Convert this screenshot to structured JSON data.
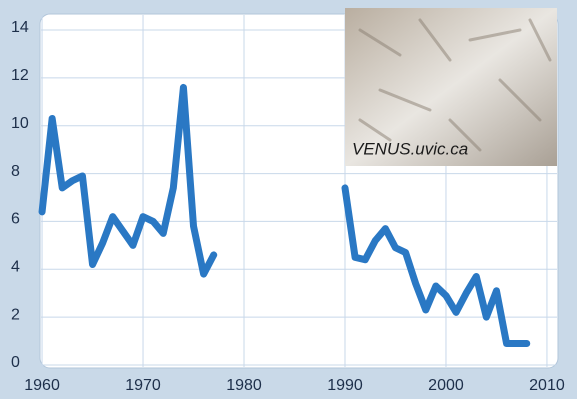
{
  "chart_data": {
    "type": "line",
    "x": [
      1960,
      1961,
      1962,
      1963,
      1964,
      1965,
      1966,
      1967,
      1968,
      1969,
      1970,
      1971,
      1972,
      1973,
      1974,
      1975,
      1976,
      1977,
      1978,
      1979,
      1980,
      1981,
      1982,
      1983,
      1984,
      1985,
      1986,
      1987,
      1988,
      1989,
      1990,
      1991,
      1992,
      1993,
      1994,
      1995,
      1996,
      1997,
      1998,
      1999,
      2000,
      2001,
      2002,
      2003,
      2004,
      2005,
      2006,
      2007,
      2008
    ],
    "series": [
      {
        "color": "#2a78c4",
        "values": [
          6.4,
          10.3,
          7.4,
          7.7,
          7.9,
          4.2,
          5.1,
          6.2,
          5.6,
          5.0,
          6.2,
          6.0,
          5.5,
          7.4,
          11.6,
          5.8,
          3.8,
          4.6,
          null,
          null,
          null,
          null,
          null,
          null,
          null,
          null,
          null,
          null,
          null,
          null,
          7.4,
          4.5,
          4.4,
          5.2,
          5.7,
          4.9,
          4.7,
          3.4,
          2.3,
          3.3,
          2.9,
          2.2,
          3.0,
          3.7,
          2.0,
          3.1,
          0.9,
          0.9,
          0.9
        ]
      }
    ],
    "xlim": [
      1959.5,
      2010.5
    ],
    "ylim": [
      0,
      14.5
    ],
    "xticks": [
      1960,
      1970,
      1980,
      1990,
      2000,
      2010
    ],
    "yticks": [
      0,
      2,
      4,
      6,
      8,
      10,
      12,
      14
    ],
    "grid": true,
    "image_credit": "VENUS.uvic.ca"
  }
}
